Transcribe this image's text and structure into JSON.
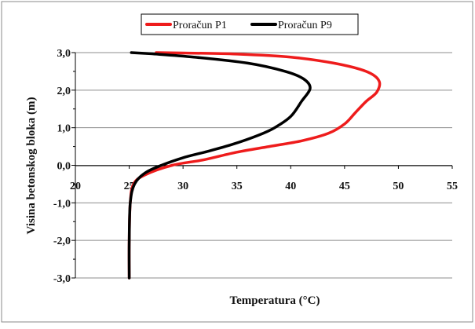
{
  "chart_data": {
    "type": "line",
    "title": "",
    "xlabel": "Temperatura (°C)",
    "ylabel": "Visina betonskog bloka (m)",
    "xlim": [
      20,
      55
    ],
    "ylim": [
      -3.0,
      3.0
    ],
    "x_ticks": [
      "20",
      "25",
      "30",
      "35",
      "40",
      "45",
      "50",
      "55"
    ],
    "y_ticks": [
      "3,0",
      "2,0",
      "1,0",
      "0,0",
      "-1,0",
      "-2,0",
      "-3,0"
    ],
    "grid": "horizontal",
    "legend_position": "top",
    "series": [
      {
        "name": "Proračun P1",
        "color": "#ee1c1c",
        "points": [
          [
            25.0,
            -3.0
          ],
          [
            25.0,
            -2.0
          ],
          [
            25.1,
            -1.0
          ],
          [
            25.4,
            -0.5
          ],
          [
            26.5,
            -0.25
          ],
          [
            29.0,
            0.0
          ],
          [
            32.0,
            0.15
          ],
          [
            35.0,
            0.35
          ],
          [
            38.0,
            0.5
          ],
          [
            41.0,
            0.65
          ],
          [
            43.5,
            0.85
          ],
          [
            45.0,
            1.1
          ],
          [
            46.0,
            1.4
          ],
          [
            47.0,
            1.7
          ],
          [
            48.0,
            1.95
          ],
          [
            48.2,
            2.25
          ],
          [
            47.0,
            2.5
          ],
          [
            44.0,
            2.72
          ],
          [
            40.0,
            2.88
          ],
          [
            35.0,
            2.96
          ],
          [
            30.0,
            2.99
          ],
          [
            27.5,
            3.0
          ]
        ]
      },
      {
        "name": "Proračun P9",
        "color": "#000000",
        "points": [
          [
            25.0,
            -3.0
          ],
          [
            25.0,
            -2.0
          ],
          [
            25.1,
            -1.0
          ],
          [
            25.5,
            -0.5
          ],
          [
            26.5,
            -0.2
          ],
          [
            28.0,
            0.0
          ],
          [
            30.0,
            0.2
          ],
          [
            32.0,
            0.35
          ],
          [
            34.5,
            0.55
          ],
          [
            37.0,
            0.8
          ],
          [
            38.5,
            1.0
          ],
          [
            40.0,
            1.3
          ],
          [
            41.0,
            1.7
          ],
          [
            41.8,
            2.05
          ],
          [
            41.2,
            2.3
          ],
          [
            39.5,
            2.5
          ],
          [
            36.0,
            2.72
          ],
          [
            31.0,
            2.88
          ],
          [
            27.0,
            2.97
          ],
          [
            25.2,
            3.0
          ]
        ]
      }
    ]
  }
}
